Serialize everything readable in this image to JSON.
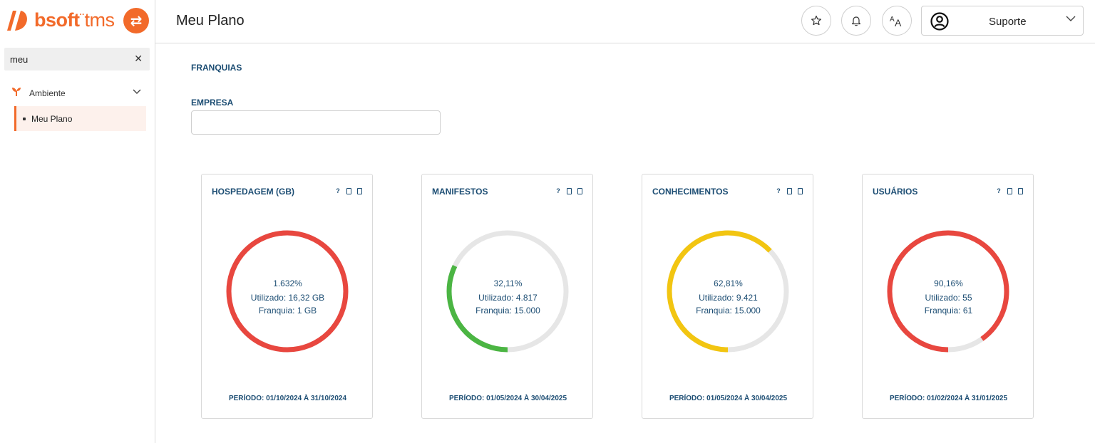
{
  "brand": {
    "name_bold": "bsoft",
    "name_light": "tms",
    "accent": "#f26a2a"
  },
  "sidebar": {
    "search": {
      "value": "meu"
    },
    "group": {
      "label": "Ambiente"
    },
    "items": [
      {
        "label": "Meu Plano",
        "active": true
      }
    ]
  },
  "header": {
    "title": "Meu Plano",
    "user": {
      "name": "Suporte"
    }
  },
  "main": {
    "franquias_label": "FRANQUIAS",
    "empresa_label": "EMPRESA",
    "empresa_value": "",
    "cards": [
      {
        "title": "HOSPEDAGEM (GB)",
        "help": "?",
        "percent_text": "1.632%",
        "used_text": "Utilizado: 16,32 GB",
        "franchise_text": "Franquia: 1 GB",
        "fraction": 1.0,
        "color": "#e8473f",
        "period": "PERÍODO: 01/10/2024 À 31/10/2024"
      },
      {
        "title": "MANIFESTOS",
        "help": "?",
        "percent_text": "32,11%",
        "used_text": "Utilizado: 4.817",
        "franchise_text": "Franquia: 15.000",
        "fraction": 0.3211,
        "color": "#4bb543",
        "period": "PERÍODO: 01/05/2024 À 30/04/2025"
      },
      {
        "title": "CONHECIMENTOS",
        "help": "?",
        "percent_text": "62,81%",
        "used_text": "Utilizado: 9.421",
        "franchise_text": "Franquia: 15.000",
        "fraction": 0.6281,
        "color": "#f2c511",
        "period": "PERÍODO: 01/05/2024 À 30/04/2025"
      },
      {
        "title": "USUÁRIOS",
        "help": "?",
        "percent_text": "90,16%",
        "used_text": "Utilizado: 55",
        "franchise_text": "Franquia: 61",
        "fraction": 0.9016,
        "color": "#e8473f",
        "period": "PERÍODO: 01/02/2024 À 31/01/2025"
      }
    ],
    "track_color": "#e6e6e6"
  }
}
